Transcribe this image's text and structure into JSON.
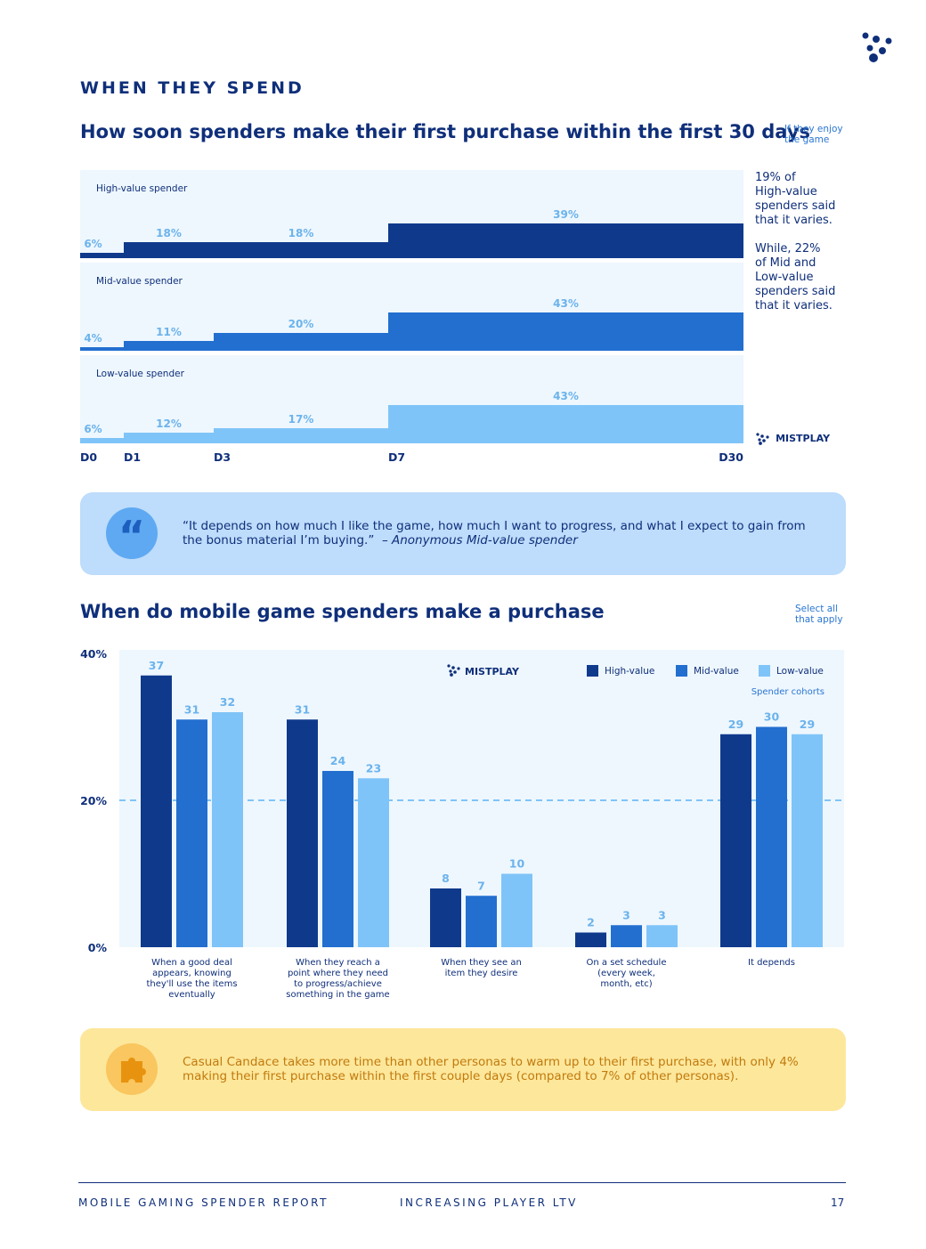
{
  "section_label": "WHEN THEY SPEND",
  "chart1": {
    "title": "How soon spenders make their first purchase within the first 30 days",
    "note": [
      "If they enjoy",
      "the game"
    ],
    "side_text": [
      "19% of",
      "High-value",
      "spenders said",
      "that it varies.",
      "",
      "While, 22%",
      "of Mid and",
      "Low-value",
      "spenders said",
      "that it varies."
    ]
  },
  "quote": {
    "text": "“It depends on how much I like the game, how much I want to progress, and what I expect to gain from the bonus material I’m buying.”",
    "attribution": "– Anonymous Mid-value spender"
  },
  "chart2": {
    "title": "When do mobile game spenders make a purchase",
    "note": [
      "Select all",
      "that apply"
    ],
    "legend_caption": "Spender cohorts"
  },
  "tip": {
    "text": "Casual Candace takes more time than other personas to warm up to their first purchase, with only 4% making their first purchase within the first couple days (compared to 7% of other personas)."
  },
  "logo_text": "MISTPLAY",
  "footer": {
    "left": "MOBILE GAMING SPENDER REPORT",
    "center": "INCREASING PLAYER LTV",
    "page": "17"
  },
  "colors": {
    "high": "#0f3a8c",
    "mid": "#226fd0",
    "low": "#7fc4f8",
    "panel": "#eef7fe",
    "label": "#6cb3ec",
    "dark": "#0f2f7a"
  },
  "chart_data": [
    {
      "type": "area",
      "title": "How soon spenders make their first purchase within the first 30 days",
      "x_breaks": [
        0,
        1,
        3,
        7,
        30
      ],
      "x_tick_labels": [
        "D0",
        "D1",
        "D3",
        "D7",
        "D30"
      ],
      "intervals": [
        "D0-D1",
        "D1-D3",
        "D3-D7",
        "D7-D30"
      ],
      "series": [
        {
          "name": "High-value spender",
          "values": [
            6,
            18,
            18,
            39
          ]
        },
        {
          "name": "Mid-value spender",
          "values": [
            4,
            11,
            20,
            43
          ]
        },
        {
          "name": "Low-value spender",
          "values": [
            6,
            12,
            17,
            43
          ]
        }
      ],
      "unit": "%"
    },
    {
      "type": "bar",
      "title": "When do mobile game spenders make a purchase",
      "categories": [
        [
          "When a good deal",
          "appears, knowing",
          "they'll use the items",
          "eventually"
        ],
        [
          "When they reach a",
          "point where they need",
          "to progress/achieve",
          "something in the game"
        ],
        [
          "When they see an",
          "item they desire"
        ],
        [
          "On a set schedule",
          "(every week,",
          "month, etc)"
        ],
        [
          "It depends"
        ]
      ],
      "series": [
        {
          "name": "High-value",
          "values": [
            37,
            31,
            8,
            2,
            29
          ]
        },
        {
          "name": "Mid-value",
          "values": [
            31,
            24,
            7,
            3,
            30
          ]
        },
        {
          "name": "Low-value",
          "values": [
            32,
            23,
            10,
            3,
            29
          ]
        }
      ],
      "y_ticks": [
        0,
        20,
        40
      ],
      "y_tick_labels": [
        "0%",
        "20%",
        "40%"
      ],
      "ylim": [
        0,
        40
      ],
      "reference_line": 20,
      "legend": "top-right"
    }
  ]
}
